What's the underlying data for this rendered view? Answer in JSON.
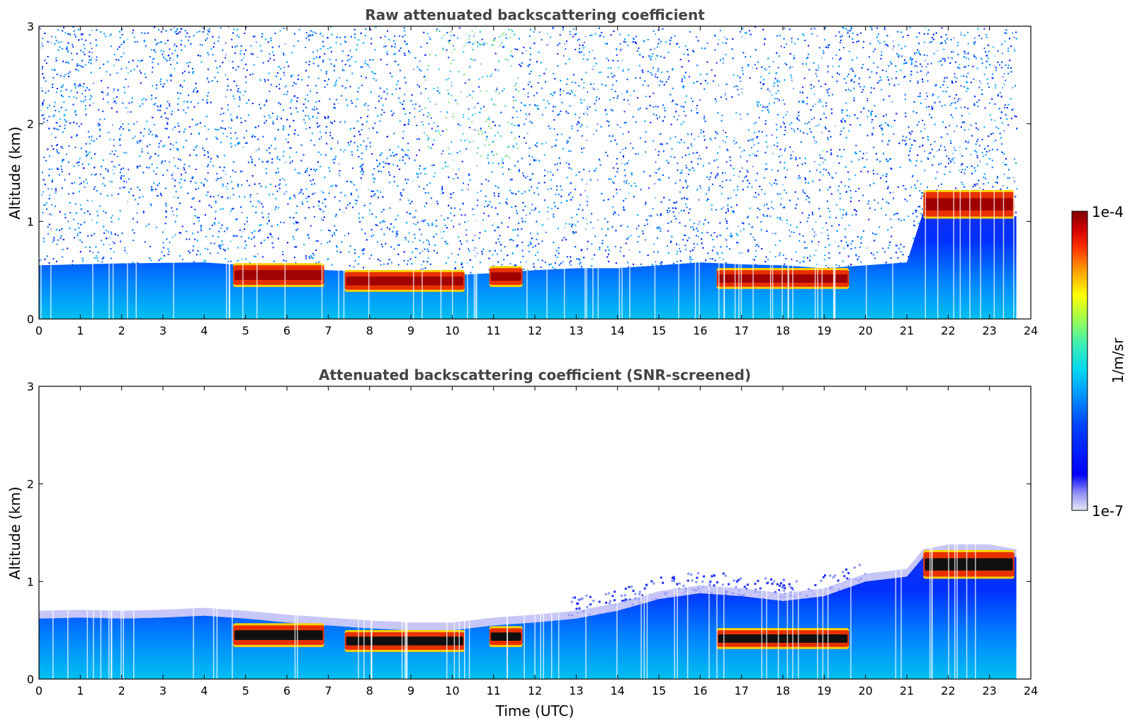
{
  "chart_data": [
    {
      "type": "heatmap",
      "title": "Raw attenuated backscattering coefficient",
      "xlabel": "",
      "ylabel": "Altitude (km)",
      "xlim": [
        0,
        24
      ],
      "ylim": [
        0,
        3
      ],
      "x_ticks": [
        "0",
        "1",
        "2",
        "3",
        "4",
        "5",
        "6",
        "7",
        "8",
        "9",
        "10",
        "11",
        "12",
        "13",
        "14",
        "15",
        "16",
        "17",
        "18",
        "19",
        "20",
        "21",
        "22",
        "23",
        "24"
      ],
      "y_ticks": [
        "0",
        "1",
        "2",
        "3"
      ],
      "data_end_time": 23.65,
      "boundary_layer": {
        "time": [
          0,
          2,
          4,
          5,
          6,
          7,
          8,
          9,
          10,
          11,
          12,
          13,
          14,
          15,
          16,
          17,
          18,
          19,
          20,
          21,
          21.4,
          22,
          23,
          23.65
        ],
        "top_km": [
          0.55,
          0.57,
          0.58,
          0.55,
          0.52,
          0.5,
          0.48,
          0.45,
          0.45,
          0.47,
          0.5,
          0.52,
          0.52,
          0.55,
          0.58,
          0.56,
          0.55,
          0.52,
          0.55,
          0.58,
          1.1,
          1.15,
          1.1,
          1.05
        ]
      },
      "cloud_layers": [
        {
          "start": 4.7,
          "end": 6.9,
          "base_km": 0.35,
          "top_km": 0.55
        },
        {
          "start": 7.4,
          "end": 10.3,
          "base_km": 0.3,
          "top_km": 0.48
        },
        {
          "start": 10.9,
          "end": 11.7,
          "base_km": 0.35,
          "top_km": 0.52
        },
        {
          "start": 16.4,
          "end": 19.6,
          "base_km": 0.33,
          "top_km": 0.5
        },
        {
          "start": 21.4,
          "end": 23.6,
          "base_km": 1.05,
          "top_km": 1.3
        }
      ],
      "noise_level": "high"
    },
    {
      "type": "heatmap",
      "title": "Attenuated backscattering coefficient (SNR-screened)",
      "xlabel": "Time (UTC)",
      "ylabel": "Altitude (km)",
      "xlim": [
        0,
        24
      ],
      "ylim": [
        0,
        3
      ],
      "x_ticks": [
        "0",
        "1",
        "2",
        "3",
        "4",
        "5",
        "6",
        "7",
        "8",
        "9",
        "10",
        "11",
        "12",
        "13",
        "14",
        "15",
        "16",
        "17",
        "18",
        "19",
        "20",
        "21",
        "22",
        "23",
        "24"
      ],
      "y_ticks": [
        "0",
        "1",
        "2",
        "3"
      ],
      "data_end_time": 23.65,
      "boundary_layer": {
        "time": [
          0,
          1,
          2,
          3,
          4,
          5,
          6,
          7,
          8,
          9,
          10,
          11,
          12,
          13,
          14,
          15,
          16,
          17,
          18,
          19,
          20,
          21,
          21.4,
          22,
          23,
          23.65
        ],
        "top_km": [
          0.62,
          0.63,
          0.62,
          0.63,
          0.65,
          0.62,
          0.58,
          0.55,
          0.52,
          0.5,
          0.5,
          0.55,
          0.58,
          0.62,
          0.7,
          0.82,
          0.88,
          0.85,
          0.8,
          0.85,
          1.0,
          1.05,
          1.25,
          1.3,
          1.3,
          1.25
        ]
      },
      "cloud_layers": [
        {
          "start": 4.7,
          "end": 6.9,
          "base_km": 0.35,
          "top_km": 0.55
        },
        {
          "start": 7.4,
          "end": 10.3,
          "base_km": 0.3,
          "top_km": 0.48
        },
        {
          "start": 10.9,
          "end": 11.7,
          "base_km": 0.35,
          "top_km": 0.52
        },
        {
          "start": 16.4,
          "end": 19.6,
          "base_km": 0.33,
          "top_km": 0.5
        },
        {
          "start": 21.4,
          "end": 23.6,
          "base_km": 1.05,
          "top_km": 1.3
        }
      ],
      "noise_level": "none"
    }
  ],
  "colorbar": {
    "max_label": "1e-4",
    "min_label": "1e-7",
    "unit_label": "1/m/sr",
    "scale": "log",
    "range": [
      1e-07,
      0.0001
    ],
    "colormap": "jet"
  }
}
